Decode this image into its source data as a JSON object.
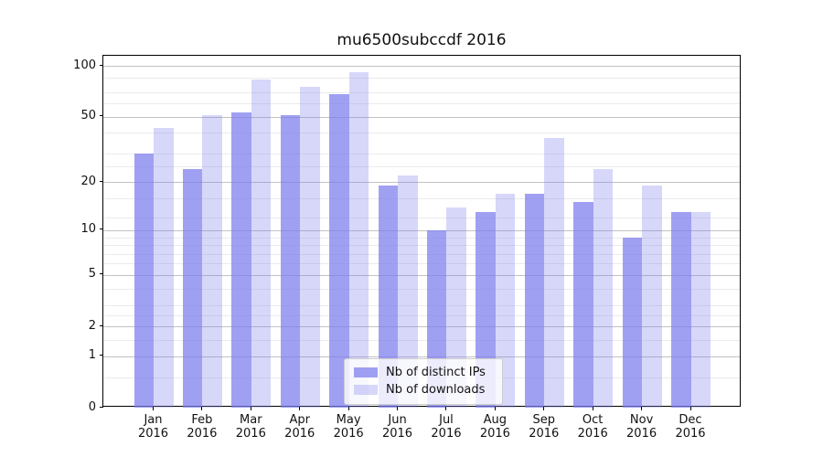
{
  "title": "mu6500subccdf 2016",
  "chart_data": {
    "type": "bar",
    "title": "mu6500subccdf 2016",
    "categories": [
      "Jan",
      "Feb",
      "Mar",
      "Apr",
      "May",
      "Jun",
      "Jul",
      "Aug",
      "Sep",
      "Oct",
      "Nov",
      "Dec"
    ],
    "category_year": "2016",
    "series": [
      {
        "name": "Nb of distinct IPs",
        "values": [
          30,
          24,
          53,
          51,
          68,
          19,
          10,
          13,
          17,
          15,
          9,
          13
        ],
        "color": "rgba(123,123,238,0.72)"
      },
      {
        "name": "Nb of downloads",
        "values": [
          43,
          51,
          83,
          75,
          92,
          22,
          14,
          17,
          37,
          24,
          19,
          13
        ],
        "color": "rgba(123,123,238,0.30)"
      }
    ],
    "yscale": "log1p",
    "ylim": [
      0,
      115
    ],
    "ymajor_ticks": [
      0,
      1,
      2,
      5,
      10,
      20,
      50,
      100
    ],
    "yminor_ticks": [
      0.5,
      1.5,
      2.5,
      3,
      4,
      6,
      7,
      8,
      9,
      12,
      16,
      25,
      30,
      40,
      60,
      70,
      85
    ],
    "xlabel": "",
    "ylabel": "",
    "grid": true,
    "legend_position": "lower-center"
  },
  "legend": {
    "items": [
      {
        "label": "Nb of distinct IPs"
      },
      {
        "label": "Nb of downloads"
      }
    ]
  }
}
